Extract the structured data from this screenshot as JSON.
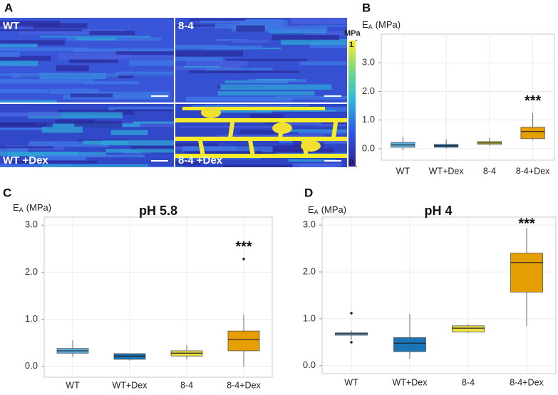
{
  "panel_a": {
    "label": "A",
    "images": [
      {
        "label": "WT"
      },
      {
        "label": "8-4"
      },
      {
        "label": "WT +Dex"
      },
      {
        "label": "8-4 +Dex"
      }
    ],
    "colorbar": {
      "title": "MPa",
      "lim": [
        0,
        1
      ],
      "ticks": [
        0,
        1
      ]
    }
  },
  "chart_data": [
    {
      "type": "box",
      "panel": "B",
      "ylabel": {
        "symbol": "E",
        "subscript": "A",
        "unit": "(MPa)"
      },
      "categories": [
        "WT",
        "WT+Dex",
        "8-4",
        "8-4+Dex"
      ],
      "colors": [
        "#5ab4e5",
        "#1a74b6",
        "#ece040",
        "#e69f00"
      ],
      "boxes": [
        {
          "min": -0.05,
          "q1": 0.05,
          "median": 0.13,
          "q3": 0.22,
          "max": 0.4,
          "outliers": []
        },
        {
          "min": 0.0,
          "q1": 0.05,
          "median": 0.1,
          "q3": 0.15,
          "max": 0.33,
          "outliers": []
        },
        {
          "min": 0.1,
          "q1": 0.15,
          "median": 0.2,
          "q3": 0.25,
          "max": 0.38,
          "outliers": []
        },
        {
          "min": 0.3,
          "q1": 0.35,
          "median": 0.6,
          "q3": 0.75,
          "max": 1.25,
          "outliers": []
        }
      ],
      "ylim": [
        -0.4,
        4.0
      ],
      "yticks": [
        {
          "value": 0,
          "label": "0.0"
        },
        {
          "value": 1,
          "label": "1.0"
        },
        {
          "value": 2,
          "label": "2.0"
        },
        {
          "value": 3,
          "label": "3.0"
        }
      ],
      "grid": true,
      "annotations": [
        {
          "text": "***",
          "category": 3
        }
      ]
    },
    {
      "type": "box",
      "panel": "C",
      "title": "pH 5.8",
      "ylabel": {
        "symbol": "E",
        "subscript": "A",
        "unit": "(MPa)"
      },
      "categories": [
        "WT",
        "WT+Dex",
        "8-4",
        "8-4+Dex"
      ],
      "colors": [
        "#5ab4e5",
        "#1a74b6",
        "#ece040",
        "#e69f00"
      ],
      "boxes": [
        {
          "min": 0.2,
          "q1": 0.28,
          "median": 0.33,
          "q3": 0.38,
          "max": 0.55,
          "outliers": []
        },
        {
          "min": 0.12,
          "q1": 0.15,
          "median": 0.22,
          "q3": 0.27,
          "max": 0.27,
          "outliers": []
        },
        {
          "min": 0.15,
          "q1": 0.22,
          "median": 0.28,
          "q3": 0.33,
          "max": 0.45,
          "outliers": []
        },
        {
          "min": 0.0,
          "q1": 0.33,
          "median": 0.57,
          "q3": 0.75,
          "max": 1.1,
          "outliers": [
            2.28
          ]
        }
      ],
      "ylim": [
        -0.23,
        3.17
      ],
      "yticks": [
        {
          "value": 0,
          "label": "0.0"
        },
        {
          "value": 1,
          "label": "1.0"
        },
        {
          "value": 2,
          "label": "2.0"
        },
        {
          "value": 3,
          "label": "3.0"
        }
      ],
      "grid": true,
      "annotations": [
        {
          "text": "***",
          "category": 3
        }
      ]
    },
    {
      "type": "box",
      "panel": "D",
      "title": "pH 4",
      "ylabel": {
        "symbol": "E",
        "subscript": "A",
        "unit": "(MPa)"
      },
      "categories": [
        "WT",
        "WT+Dex",
        "8-4",
        "8-4+Dex"
      ],
      "colors": [
        "#5ab4e5",
        "#1a74b6",
        "#ece040",
        "#e69f00"
      ],
      "boxes": [
        {
          "min": 0.55,
          "q1": 0.65,
          "median": 0.68,
          "q3": 0.7,
          "max": 0.75,
          "outliers": [
            1.12,
            0.5
          ]
        },
        {
          "min": 0.15,
          "q1": 0.3,
          "median": 0.48,
          "q3": 0.6,
          "max": 1.1,
          "outliers": []
        },
        {
          "min": 0.7,
          "q1": 0.72,
          "median": 0.8,
          "q3": 0.85,
          "max": 0.88,
          "outliers": []
        },
        {
          "min": 0.85,
          "q1": 1.57,
          "median": 2.2,
          "q3": 2.4,
          "max": 2.93,
          "outliers": []
        }
      ],
      "ylim": [
        -0.17,
        3.17
      ],
      "yticks": [
        {
          "value": 0,
          "label": "0.0"
        },
        {
          "value": 1,
          "label": "1.0"
        },
        {
          "value": 2,
          "label": "2.0"
        },
        {
          "value": 3,
          "label": "3.0"
        }
      ],
      "grid": true,
      "annotations": [
        {
          "text": "***",
          "category": 3
        }
      ]
    }
  ]
}
